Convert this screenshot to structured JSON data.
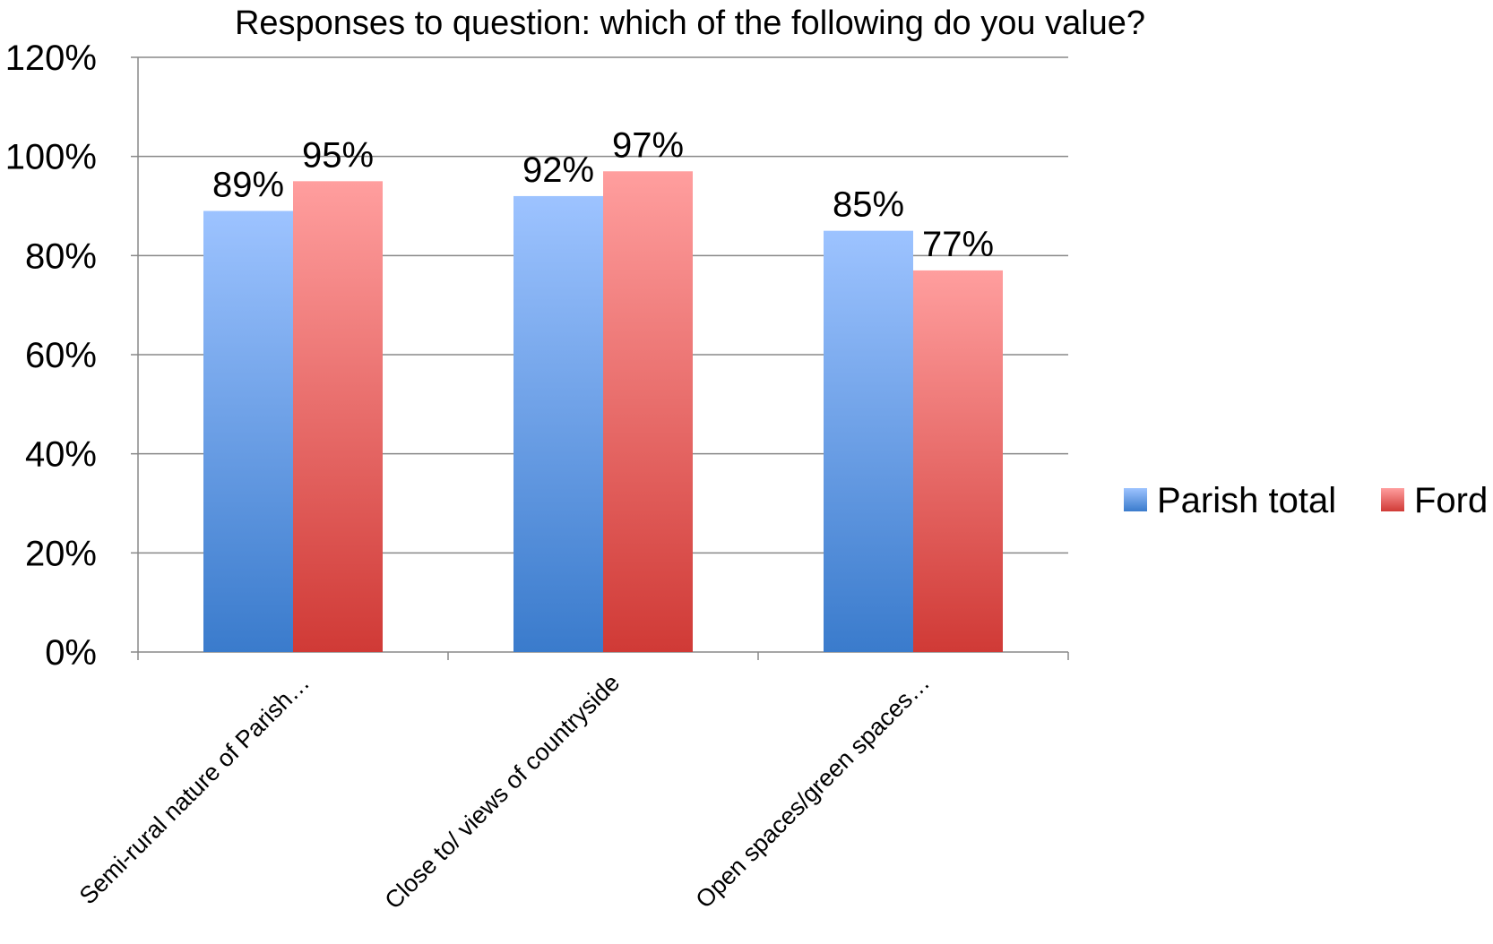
{
  "chart_data": {
    "type": "bar",
    "title": "Responses to question: which of the following do you value?",
    "categories": [
      "Semi-rural nature of Parish…",
      "Close to/ views of countryside",
      "Open spaces/green spaces…"
    ],
    "series": [
      {
        "name": "Parish total",
        "values": [
          89,
          92,
          85
        ],
        "labels": [
          "89%",
          "92%",
          "85%"
        ],
        "color_top": "#9dc3ff",
        "color_bottom": "#3a7bcc"
      },
      {
        "name": "Ford",
        "values": [
          95,
          97,
          77
        ],
        "labels": [
          "95%",
          "97%",
          "77%"
        ],
        "color_top": "#ff9e9e",
        "color_bottom": "#d03a36"
      }
    ],
    "ylim": [
      0,
      120
    ],
    "ytick_values": [
      0,
      20,
      40,
      60,
      80,
      100,
      120
    ],
    "ytick_labels": [
      "0%",
      "20%",
      "40%",
      "60%",
      "80%",
      "100%",
      "120%"
    ],
    "xlabel": "",
    "ylabel": "",
    "grid": true,
    "legend_position": "right"
  }
}
